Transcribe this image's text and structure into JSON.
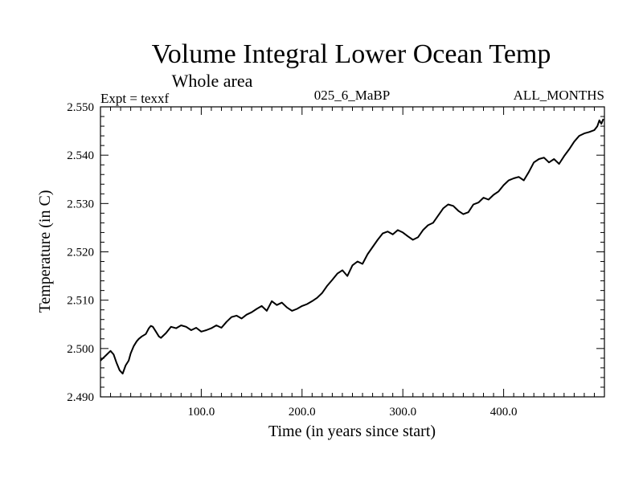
{
  "chart_data": {
    "type": "line",
    "title": "Volume Integral Lower Ocean Temp",
    "subtitle": "Whole area",
    "header_left": "Expt = texxf",
    "header_center": "025_6_MaBP",
    "header_right": "ALL_MONTHS",
    "xlabel": "Time (in years since start)",
    "ylabel": "Temperature (in C)",
    "xlim": [
      0,
      500
    ],
    "ylim": [
      2.49,
      2.55
    ],
    "x_ticks": [
      100,
      200,
      300,
      400
    ],
    "x_tick_labels": [
      "100.0",
      "200.0",
      "300.0",
      "400.0"
    ],
    "y_ticks": [
      2.49,
      2.5,
      2.51,
      2.52,
      2.53,
      2.54,
      2.55
    ],
    "y_tick_labels": [
      "2.490",
      "2.500",
      "2.510",
      "2.520",
      "2.530",
      "2.540",
      "2.550"
    ],
    "grid": false,
    "series": [
      {
        "name": "texxf",
        "x": [
          0,
          5,
          10,
          13,
          16,
          19,
          22,
          25,
          28,
          30,
          33,
          36,
          38,
          41,
          45,
          48,
          50,
          52,
          55,
          58,
          60,
          65,
          70,
          75,
          80,
          85,
          90,
          95,
          100,
          105,
          110,
          115,
          120,
          125,
          130,
          135,
          140,
          145,
          150,
          155,
          160,
          165,
          170,
          175,
          180,
          185,
          190,
          195,
          200,
          205,
          210,
          215,
          220,
          225,
          230,
          235,
          240,
          245,
          250,
          255,
          260,
          265,
          270,
          275,
          280,
          285,
          290,
          295,
          300,
          305,
          310,
          315,
          320,
          325,
          330,
          335,
          340,
          345,
          350,
          355,
          360,
          365,
          370,
          375,
          380,
          385,
          390,
          395,
          400,
          405,
          410,
          415,
          420,
          425,
          430,
          435,
          440,
          445,
          450,
          455,
          460,
          465,
          470,
          475,
          480,
          485,
          490,
          493,
          495,
          497,
          499
        ],
        "y": [
          2.4975,
          2.4985,
          2.4995,
          2.4988,
          2.497,
          2.4955,
          2.4948,
          2.4965,
          2.4975,
          2.499,
          2.5005,
          2.5015,
          2.502,
          2.5025,
          2.503,
          2.5042,
          2.5047,
          2.5045,
          2.5035,
          2.5025,
          2.5022,
          2.5032,
          2.5045,
          2.5042,
          2.5048,
          2.5045,
          2.5038,
          2.5043,
          2.5035,
          2.5038,
          2.5042,
          2.5048,
          2.5043,
          2.5055,
          2.5065,
          2.5068,
          2.5062,
          2.507,
          2.5075,
          2.5082,
          2.5088,
          2.5078,
          2.5098,
          2.509,
          2.5095,
          2.5085,
          2.5078,
          2.5082,
          2.5088,
          2.5092,
          2.5098,
          2.5105,
          2.5115,
          2.513,
          2.5142,
          2.5155,
          2.5162,
          2.515,
          2.5172,
          2.518,
          2.5175,
          2.5195,
          2.521,
          2.5225,
          2.5238,
          2.5242,
          2.5236,
          2.5245,
          2.524,
          2.5232,
          2.5225,
          2.523,
          2.5245,
          2.5255,
          2.526,
          2.5275,
          2.529,
          2.5298,
          2.5295,
          2.5285,
          2.5278,
          2.5282,
          2.5298,
          2.5302,
          2.5312,
          2.5308,
          2.5318,
          2.5325,
          2.5338,
          2.5348,
          2.5352,
          2.5355,
          2.5348,
          2.5365,
          2.5385,
          2.5392,
          2.5395,
          2.5385,
          2.5392,
          2.5382,
          2.5398,
          2.5412,
          2.5428,
          2.544,
          2.5445,
          2.5448,
          2.5452,
          2.546,
          2.5472,
          2.5465,
          2.5475
        ]
      }
    ]
  }
}
